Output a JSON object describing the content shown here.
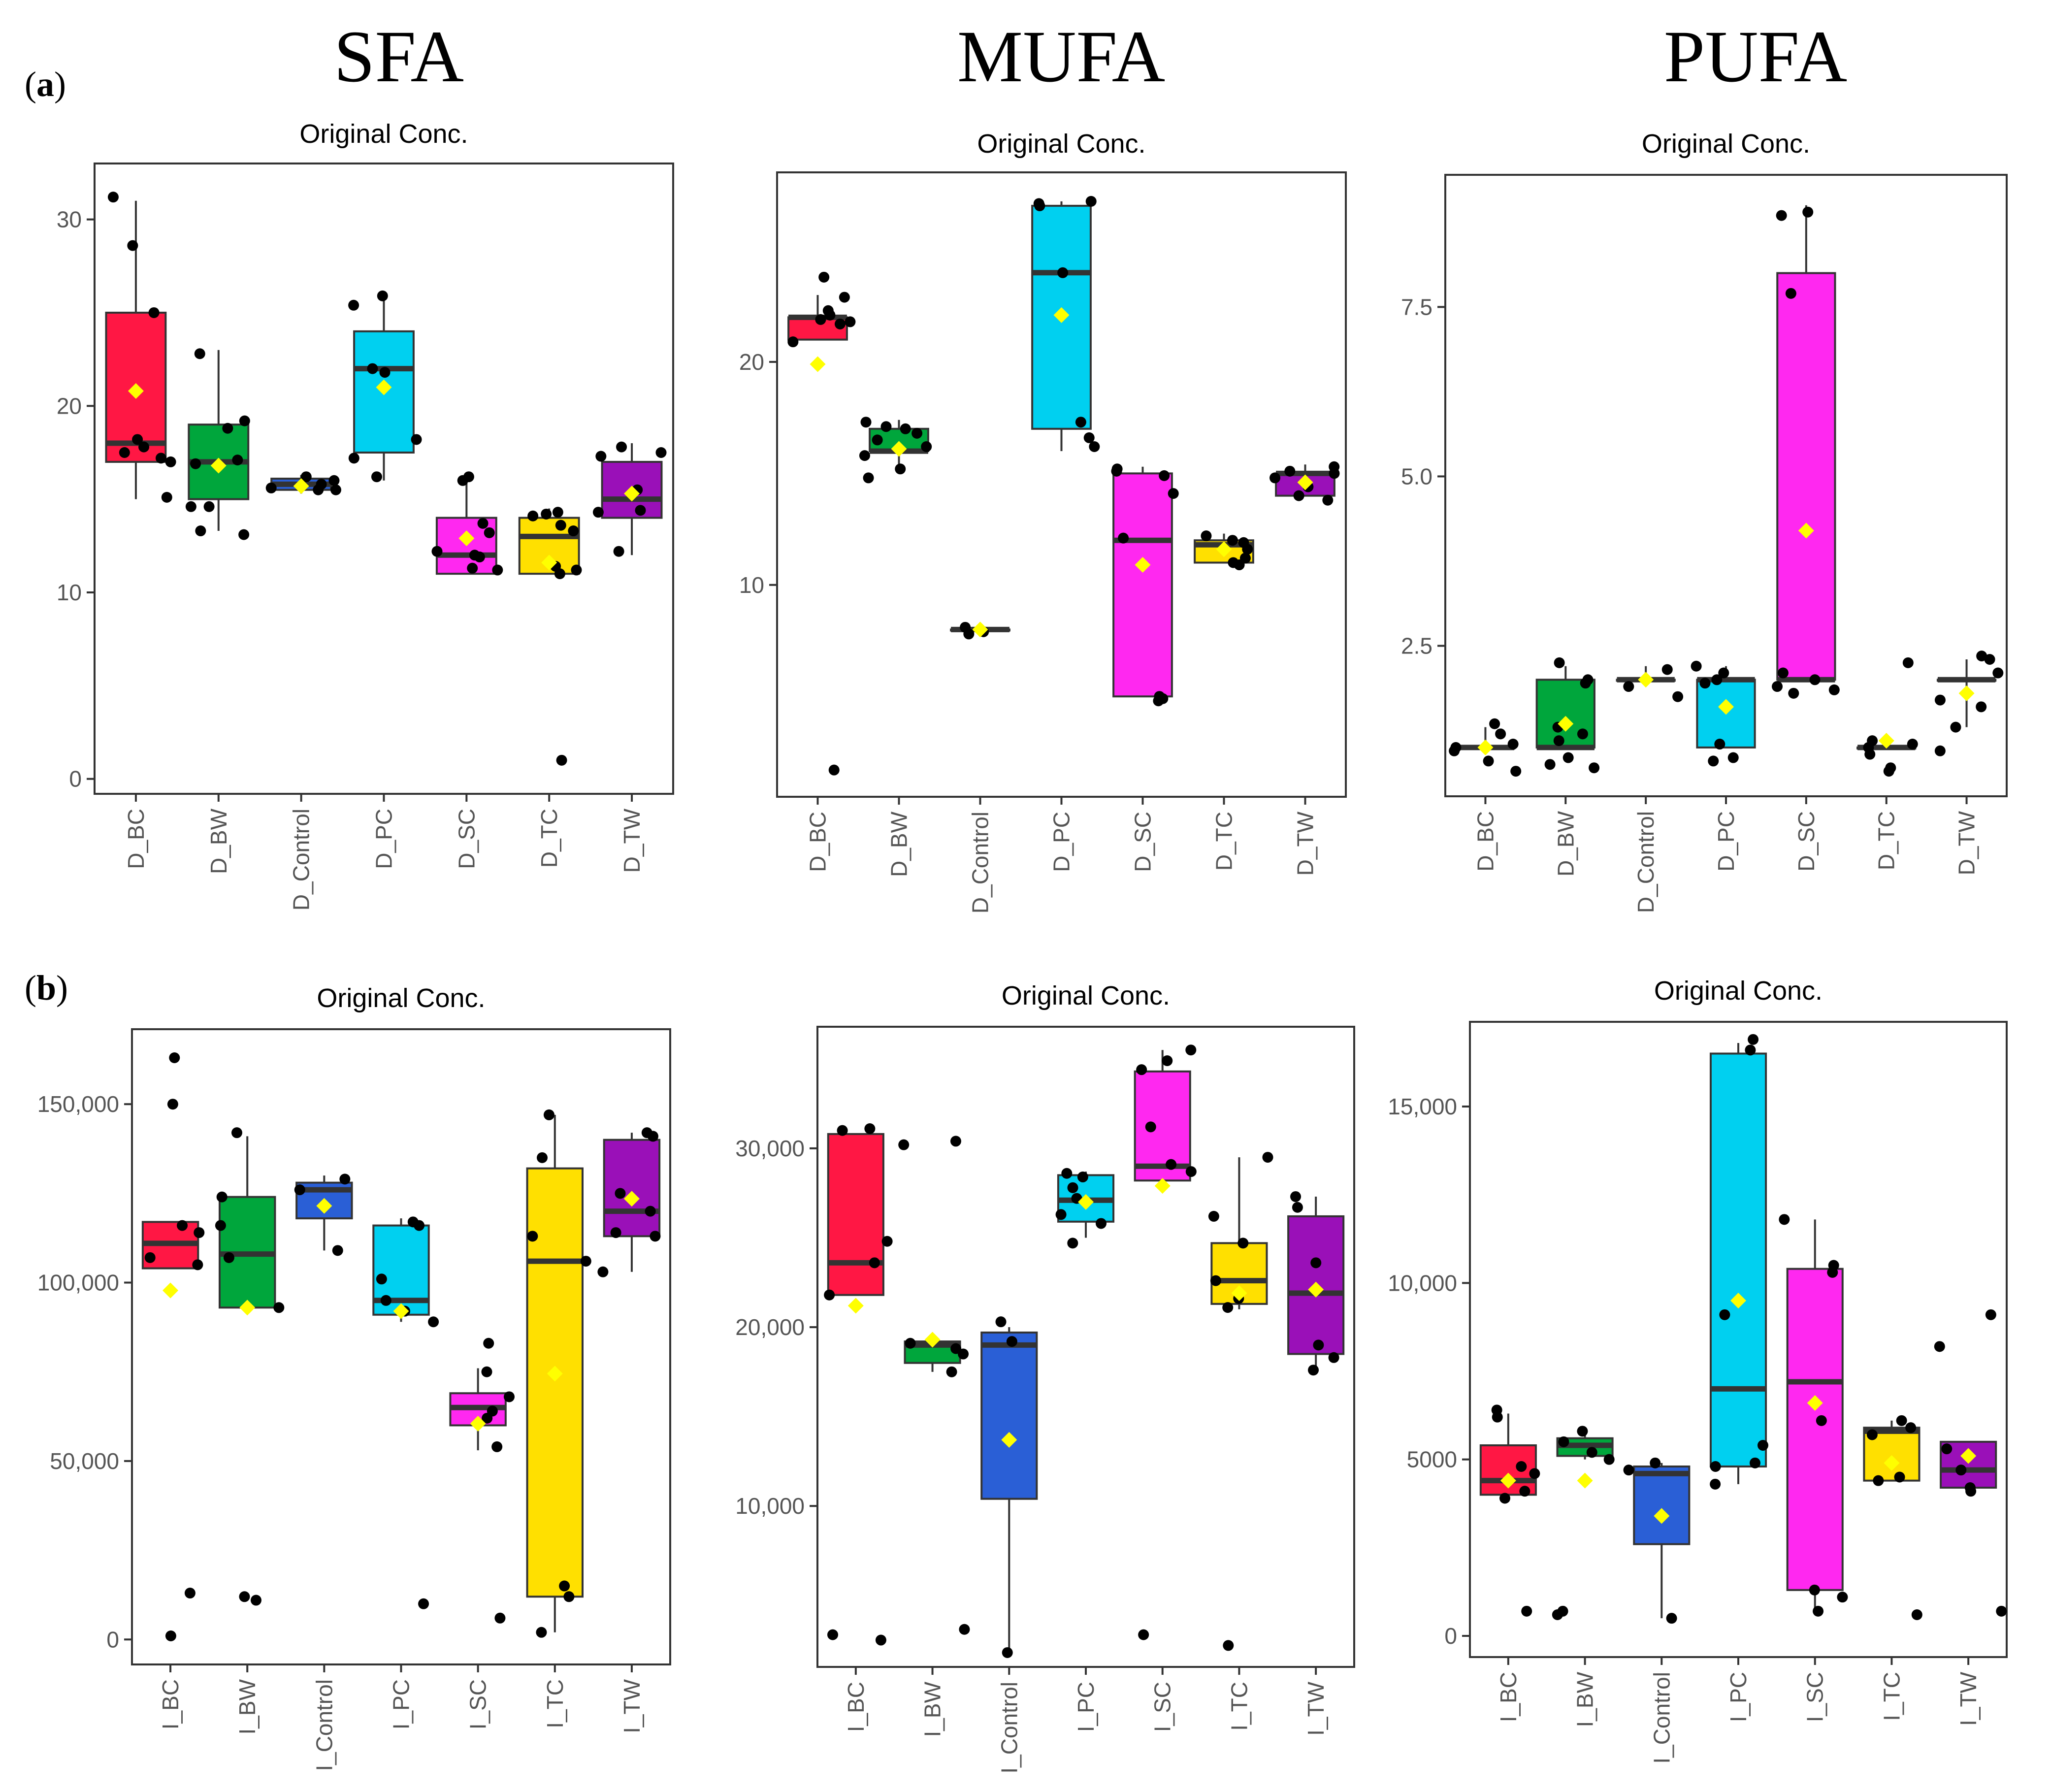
{
  "column_titles": [
    "SFA",
    "MUFA",
    "PUFA"
  ],
  "row_labels": {
    "a": "a",
    "b": "b"
  },
  "colors": {
    "BC": "#ff1744",
    "BW": "#00a63c",
    "Control": "#2a5fd6",
    "PC": "#00d0f0",
    "SC": "#ff28f0",
    "TC": "#ffe000",
    "TW": "#9a10b8",
    "mean_marker": "#ffff00",
    "median": "#333333",
    "points": "#000000"
  },
  "chart_data": [
    {
      "id": "a-sfa",
      "type": "box",
      "title": "Original Conc.",
      "categories": [
        "D_BC",
        "D_BW",
        "D_Control",
        "D_PC",
        "D_SC",
        "D_TC",
        "D_TW"
      ],
      "groups": [
        "BC",
        "BW",
        "Control",
        "PC",
        "SC",
        "TC",
        "TW"
      ],
      "ylim": [
        -0.8,
        33
      ],
      "yticks": [
        0,
        10,
        20,
        30
      ],
      "ytick_labels": [
        "0",
        "10",
        "20",
        "30"
      ],
      "boxes": [
        {
          "q1": 17,
          "median": 18,
          "q3": 25,
          "wlo": 15,
          "whi": 31,
          "mean": 20.8,
          "points": [
            31.2,
            28.6,
            25,
            18.2,
            17.8,
            17.5,
            17,
            17.2,
            15.1
          ]
        },
        {
          "q1": 15,
          "median": 17,
          "q3": 19,
          "wlo": 13.3,
          "whi": 23,
          "mean": 16.8,
          "points": [
            22.8,
            19.2,
            18.8,
            17.1,
            16.9,
            14.6,
            14.6,
            13.3,
            13.1
          ]
        },
        {
          "q1": 15.5,
          "median": 15.8,
          "q3": 16.1,
          "wlo": 15.3,
          "whi": 16.3,
          "mean": 15.7,
          "points": [
            16.2,
            16,
            15.8,
            15.6,
            15.5,
            15.5
          ]
        },
        {
          "q1": 17.5,
          "median": 22,
          "q3": 24,
          "wlo": 16,
          "whi": 26,
          "mean": 21,
          "points": [
            25.9,
            25.4,
            22,
            21.8,
            18.2,
            17.2,
            16.2
          ]
        },
        {
          "q1": 11,
          "median": 12,
          "q3": 14,
          "wlo": 11,
          "whi": 16.3,
          "mean": 12.9,
          "points": [
            16.2,
            16,
            13.7,
            13.2,
            12.2,
            11.9,
            12,
            11.3,
            11.2
          ]
        },
        {
          "q1": 11,
          "median": 13,
          "q3": 14,
          "wlo": 11,
          "whi": 14.5,
          "mean": 11.6,
          "points": [
            14.3,
            14.2,
            14.1,
            13.6,
            13.3,
            11.4,
            11.2,
            11,
            1
          ]
        },
        {
          "q1": 14,
          "median": 15,
          "q3": 17,
          "wlo": 12,
          "whi": 18,
          "mean": 15.3,
          "points": [
            17.8,
            17.5,
            17.3,
            15.5,
            14.4,
            14.3,
            12.2
          ]
        }
      ]
    },
    {
      "id": "a-mufa",
      "type": "box",
      "title": "Original Conc.",
      "categories": [
        "D_BC",
        "D_BW",
        "D_Control",
        "D_PC",
        "D_SC",
        "D_TC",
        "D_TW"
      ],
      "groups": [
        "BC",
        "BW",
        "Control",
        "PC",
        "SC",
        "TC",
        "TW"
      ],
      "ylim": [
        0.5,
        28.5
      ],
      "yticks": [
        10,
        20
      ],
      "ytick_labels": [
        "10",
        "20"
      ],
      "boxes": [
        {
          "q1": 21,
          "median": 22,
          "q3": 22,
          "wlo": 21,
          "whi": 23,
          "mean": 19.9,
          "points": [
            23.8,
            22.9,
            22.3,
            22.1,
            21.9,
            21.8,
            21.7,
            20.9,
            1.7
          ]
        },
        {
          "q1": 16,
          "median": 16,
          "q3": 17,
          "wlo": 15,
          "whi": 17.4,
          "mean": 16.1,
          "points": [
            17.3,
            17.1,
            17,
            16.8,
            16.5,
            16.2,
            15.8,
            15.2,
            14.8
          ]
        },
        {
          "q1": 8,
          "median": 8,
          "q3": 8,
          "wlo": 7.8,
          "whi": 8.2,
          "mean": 8,
          "points": [
            8.1,
            7.9,
            7.8
          ]
        },
        {
          "q1": 17,
          "median": 24,
          "q3": 27,
          "wlo": 16,
          "whi": 27.2,
          "mean": 22.1,
          "points": [
            27.2,
            27.1,
            27,
            24,
            17.3,
            16.6,
            16.2
          ]
        },
        {
          "q1": 5,
          "median": 12,
          "q3": 15,
          "wlo": 5,
          "whi": 15.3,
          "mean": 10.9,
          "points": [
            15.2,
            15.1,
            14.9,
            14.1,
            12.1,
            5,
            4.9,
            4.8
          ]
        },
        {
          "q1": 11,
          "median": 11.8,
          "q3": 12,
          "wlo": 11,
          "whi": 12.3,
          "mean": 11.6,
          "points": [
            12.2,
            12,
            11.9,
            11.6,
            11.2,
            11,
            10.9
          ]
        },
        {
          "q1": 14,
          "median": 15,
          "q3": 15,
          "wlo": 14,
          "whi": 15.4,
          "mean": 14.6,
          "points": [
            15.3,
            15.1,
            15,
            14.8,
            14.4,
            14,
            13.8
          ]
        }
      ]
    },
    {
      "id": "a-pufa",
      "type": "box",
      "title": "Original Conc.",
      "categories": [
        "D_BC",
        "D_BW",
        "D_Control",
        "D_PC",
        "D_SC",
        "D_TC",
        "D_TW"
      ],
      "groups": [
        "BC",
        "BW",
        "Control",
        "PC",
        "SC",
        "TC",
        "TW"
      ],
      "ylim": [
        0.28,
        9.45
      ],
      "yticks": [
        2.5,
        5,
        7.5
      ],
      "ytick_labels": [
        "2.5",
        "5.0",
        "7.5"
      ],
      "boxes": [
        {
          "q1": 1,
          "median": 1,
          "q3": 1,
          "wlo": 1,
          "whi": 1.3,
          "mean": 1,
          "points": [
            1.35,
            1.2,
            1.05,
            1,
            0.95,
            0.8,
            0.65
          ]
        },
        {
          "q1": 1,
          "median": 1,
          "q3": 2,
          "wlo": 1,
          "whi": 2.2,
          "mean": 1.35,
          "points": [
            2.25,
            2,
            1.95,
            1.3,
            1.2,
            1.1,
            0.85,
            0.75,
            0.7
          ]
        },
        {
          "q1": 2,
          "median": 2,
          "q3": 2,
          "wlo": 2,
          "whi": 2.2,
          "mean": 2,
          "points": [
            2.15,
            1.9,
            1.75
          ]
        },
        {
          "q1": 1,
          "median": 2,
          "q3": 2,
          "wlo": 1,
          "whi": 2.2,
          "mean": 1.6,
          "points": [
            2.2,
            2.1,
            2,
            1.95,
            1.05,
            0.85,
            0.8
          ]
        },
        {
          "q1": 2,
          "median": 2,
          "q3": 8,
          "wlo": 2,
          "whi": 9,
          "mean": 4.2,
          "points": [
            8.9,
            8.85,
            7.7,
            2.1,
            2,
            1.9,
            1.85,
            1.8
          ]
        },
        {
          "q1": 1,
          "median": 1,
          "q3": 1,
          "wlo": 1,
          "whi": 1.1,
          "mean": 1.1,
          "points": [
            2.25,
            1.1,
            1.05,
            1,
            0.9,
            0.7,
            0.65
          ]
        },
        {
          "q1": 2,
          "median": 2,
          "q3": 2,
          "wlo": 1.3,
          "whi": 2.3,
          "mean": 1.8,
          "points": [
            2.35,
            2.3,
            2.1,
            1.7,
            1.6,
            1.3,
            0.95
          ]
        }
      ]
    },
    {
      "id": "b-sfa",
      "type": "box",
      "title": "Original Conc.",
      "categories": [
        "I_BC",
        "I_BW",
        "I_Control",
        "I_PC",
        "I_SC",
        "I_TC",
        "I_TW"
      ],
      "groups": [
        "BC",
        "BW",
        "Control",
        "PC",
        "SC",
        "TC",
        "TW"
      ],
      "ylim": [
        -7000,
        171000
      ],
      "yticks": [
        0,
        50000,
        100000,
        150000
      ],
      "ytick_labels": [
        "0",
        "50,000",
        "100,000",
        "150,000"
      ],
      "boxes": [
        {
          "q1": 104000,
          "median": 111000,
          "q3": 117000,
          "wlo": 104000,
          "whi": 117000,
          "mean": 97800,
          "points": [
            163000,
            150000,
            116000,
            114000,
            107000,
            105000,
            13000,
            1000
          ]
        },
        {
          "q1": 93000,
          "median": 108000,
          "q3": 124000,
          "wlo": 93000,
          "whi": 141000,
          "mean": 93000,
          "points": [
            142000,
            124000,
            116000,
            107000,
            93000,
            12000,
            11000
          ]
        },
        {
          "q1": 118000,
          "median": 126000,
          "q3": 128000,
          "wlo": 109000,
          "whi": 130000,
          "mean": 121500,
          "points": [
            129000,
            126000,
            109000
          ]
        },
        {
          "q1": 91000,
          "median": 95000,
          "q3": 116000,
          "wlo": 89000,
          "whi": 118000,
          "mean": 92000,
          "points": [
            117000,
            116000,
            101000,
            95000,
            92000,
            89000,
            10000
          ]
        },
        {
          "q1": 60000,
          "median": 65000,
          "q3": 69000,
          "wlo": 53000,
          "whi": 76000,
          "mean": 60500,
          "points": [
            83000,
            75000,
            68000,
            64000,
            62000,
            54000,
            6000
          ]
        },
        {
          "q1": 12000,
          "median": 106000,
          "q3": 132000,
          "wlo": 2000,
          "whi": 147000,
          "mean": 74500,
          "points": [
            147000,
            135000,
            113000,
            106000,
            15000,
            12000,
            2000
          ]
        },
        {
          "q1": 113000,
          "median": 120000,
          "q3": 140000,
          "wlo": 103000,
          "whi": 142000,
          "mean": 123500,
          "points": [
            142000,
            141000,
            125000,
            120000,
            114000,
            113000,
            103000
          ]
        }
      ]
    },
    {
      "id": "b-mufa",
      "type": "box",
      "title": "Original Conc.",
      "categories": [
        "I_BC",
        "I_BW",
        "I_Control",
        "I_PC",
        "I_SC",
        "I_TC",
        "I_TW"
      ],
      "groups": [
        "BC",
        "BW",
        "Control",
        "PC",
        "SC",
        "TC",
        "TW"
      ],
      "ylim": [
        1000,
        36800
      ],
      "yticks": [
        10000,
        20000,
        30000
      ],
      "ytick_labels": [
        "10,000",
        "20,000",
        "30,000"
      ],
      "boxes": [
        {
          "q1": 21800,
          "median": 23600,
          "q3": 30800,
          "wlo": 21800,
          "whi": 30800,
          "mean": 21200,
          "points": [
            31100,
            31000,
            24800,
            23600,
            21800,
            2800,
            2500
          ]
        },
        {
          "q1": 18000,
          "median": 19000,
          "q3": 19200,
          "wlo": 17500,
          "whi": 19300,
          "mean": 19300,
          "points": [
            30400,
            30200,
            19100,
            18800,
            18500,
            17500,
            3100
          ]
        },
        {
          "q1": 10400,
          "median": 19000,
          "q3": 19700,
          "wlo": 1700,
          "whi": 20000,
          "mean": 13700,
          "points": [
            20300,
            19200,
            1800
          ]
        },
        {
          "q1": 25900,
          "median": 27100,
          "q3": 28500,
          "wlo": 25000,
          "whi": 28700,
          "mean": 27000,
          "points": [
            28600,
            28400,
            27800,
            27200,
            26300,
            25800,
            24700
          ]
        },
        {
          "q1": 28200,
          "median": 29000,
          "q3": 34300,
          "wlo": 28000,
          "whi": 35500,
          "mean": 27900,
          "points": [
            35500,
            34900,
            34400,
            31200,
            29100,
            28700,
            2800
          ]
        },
        {
          "q1": 21300,
          "median": 22600,
          "q3": 24700,
          "wlo": 21000,
          "whi": 29500,
          "mean": 21900,
          "points": [
            29500,
            26200,
            24700,
            22600,
            21600,
            21100,
            2200
          ]
        },
        {
          "q1": 18500,
          "median": 21900,
          "q3": 26200,
          "wlo": 17800,
          "whi": 27300,
          "mean": 22100,
          "points": [
            27300,
            26700,
            23600,
            19000,
            18300,
            17600
          ]
        }
      ]
    },
    {
      "id": "b-pufa",
      "type": "box",
      "title": "Original Conc.",
      "categories": [
        "I_BC",
        "I_BW",
        "I_Control",
        "I_PC",
        "I_SC",
        "I_TC",
        "I_TW"
      ],
      "groups": [
        "BC",
        "BW",
        "Control",
        "PC",
        "SC",
        "TC",
        "TW"
      ],
      "ylim": [
        -600,
        17400
      ],
      "yticks": [
        0,
        5000,
        10000,
        15000
      ],
      "ytick_labels": [
        "0",
        "5000",
        "10,000",
        "15,000"
      ],
      "boxes": [
        {
          "q1": 4000,
          "median": 4400,
          "q3": 5400,
          "wlo": 3800,
          "whi": 6300,
          "mean": 4400,
          "points": [
            6400,
            6200,
            4800,
            4600,
            4100,
            3900,
            700
          ]
        },
        {
          "q1": 5100,
          "median": 5400,
          "q3": 5600,
          "wlo": 5000,
          "whi": 5900,
          "mean": 4400,
          "points": [
            5800,
            5500,
            5200,
            5000,
            700,
            600
          ]
        },
        {
          "q1": 2600,
          "median": 4600,
          "q3": 4800,
          "wlo": 500,
          "whi": 4900,
          "mean": 3400,
          "points": [
            4900,
            4700,
            500
          ]
        },
        {
          "q1": 4800,
          "median": 7000,
          "q3": 16500,
          "wlo": 4300,
          "whi": 16800,
          "mean": 9500,
          "points": [
            16900,
            16600,
            9100,
            5400,
            4900,
            4800,
            4300
          ]
        },
        {
          "q1": 1300,
          "median": 7200,
          "q3": 10400,
          "wlo": 700,
          "whi": 11800,
          "mean": 6600,
          "points": [
            11800,
            10500,
            10300,
            6100,
            1300,
            1100,
            700
          ]
        },
        {
          "q1": 4400,
          "median": 5800,
          "q3": 5900,
          "wlo": 4400,
          "whi": 6100,
          "mean": 4900,
          "points": [
            6100,
            5900,
            5700,
            4500,
            4400,
            600
          ]
        },
        {
          "q1": 4200,
          "median": 4700,
          "q3": 5500,
          "wlo": 4100,
          "whi": 5500,
          "mean": 5100,
          "points": [
            9100,
            8200,
            5300,
            4700,
            4200,
            4100,
            700
          ]
        }
      ]
    }
  ]
}
